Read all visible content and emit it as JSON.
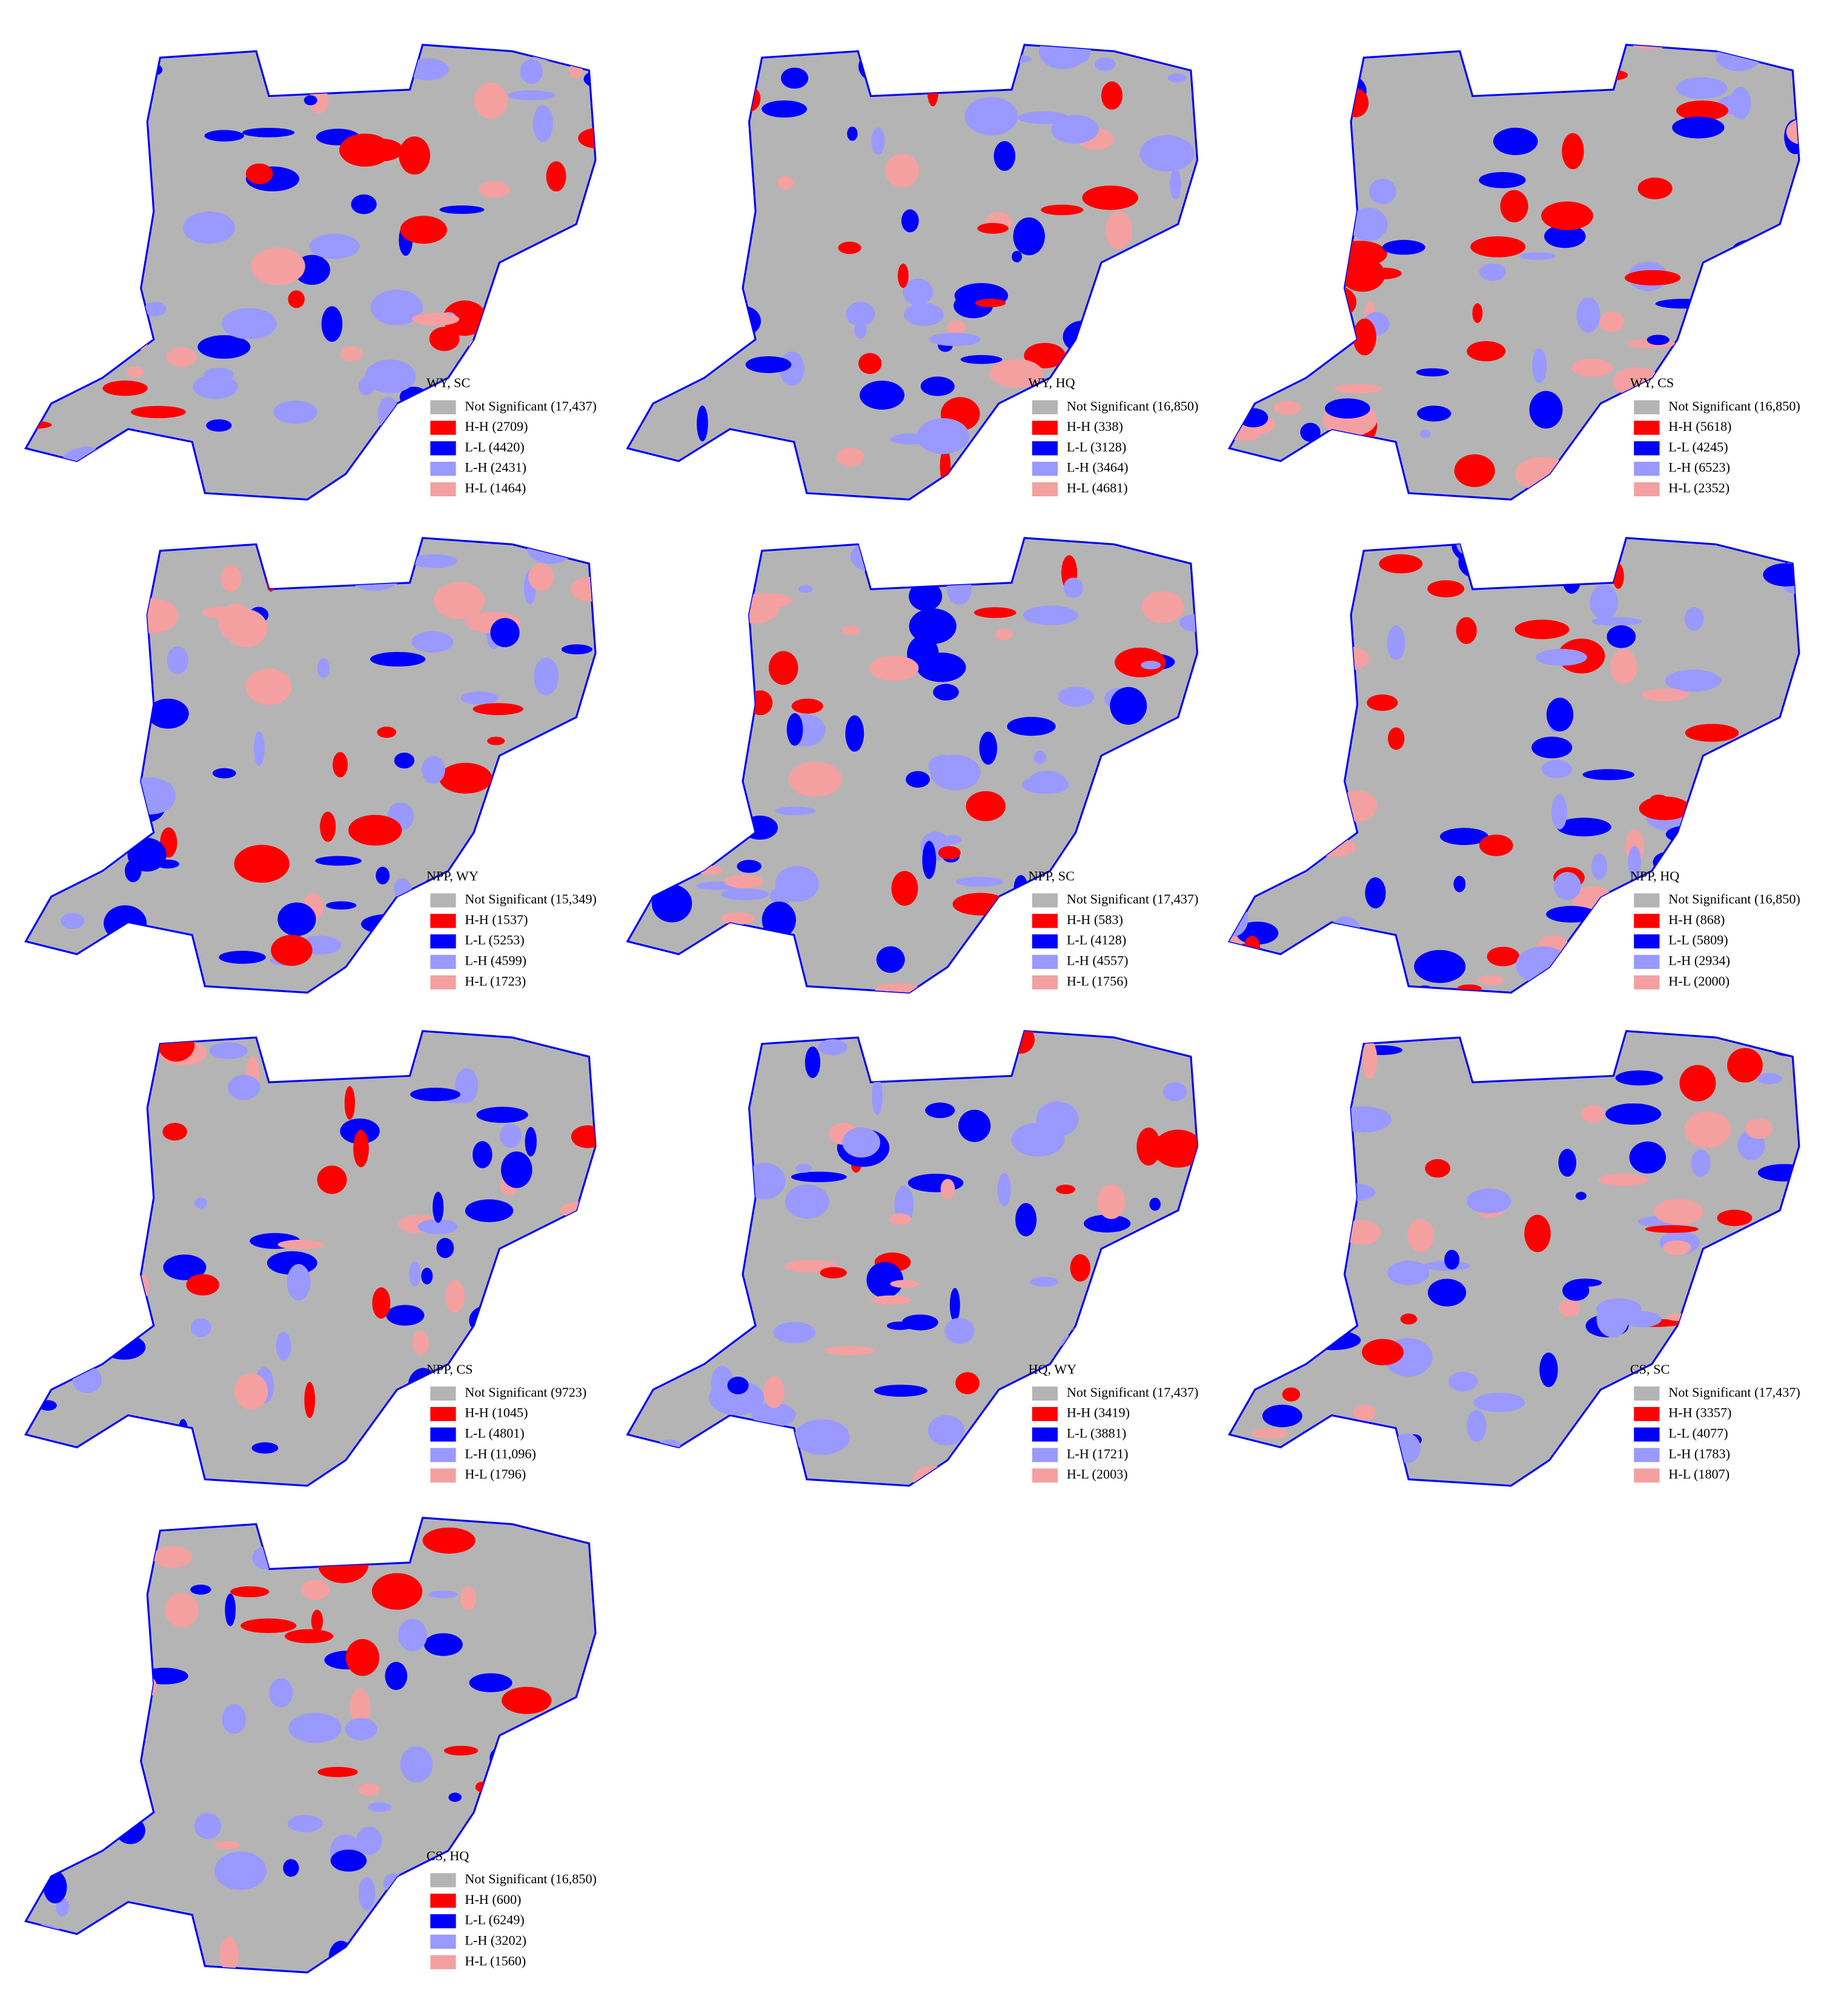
{
  "panels": [
    {
      "title": "WY, SC",
      "legend": [
        {
          "label": "Not Significant (17,437)",
          "color": "#b4b4b4"
        },
        {
          "label": "H-H (2709)",
          "color": "#ff0000"
        },
        {
          "label": "L-L (4420)",
          "color": "#0000ff"
        },
        {
          "label": "L-H (2431)",
          "color": "#9999ff"
        },
        {
          "label": "H-L (1464)",
          "color": "#f4a0a0"
        }
      ]
    },
    {
      "title": "WY, HQ",
      "legend": [
        {
          "label": "Not Significant (16,850)",
          "color": "#b4b4b4"
        },
        {
          "label": "H-H (338)",
          "color": "#ff0000"
        },
        {
          "label": "L-L (3128)",
          "color": "#0000ff"
        },
        {
          "label": "L-H (3464)",
          "color": "#9999ff"
        },
        {
          "label": "H-L (4681)",
          "color": "#f4a0a0"
        }
      ]
    },
    {
      "title": "WY, CS",
      "legend": [
        {
          "label": "Not Significant (16,850)",
          "color": "#b4b4b4"
        },
        {
          "label": "H-H (5618)",
          "color": "#ff0000"
        },
        {
          "label": "L-L (4245)",
          "color": "#0000ff"
        },
        {
          "label": "L-H (6523)",
          "color": "#9999ff"
        },
        {
          "label": "H-L (2352)",
          "color": "#f4a0a0"
        }
      ]
    },
    {
      "title": "NPP, WY",
      "legend": [
        {
          "label": "Not Significant (15,349)",
          "color": "#b4b4b4"
        },
        {
          "label": "H-H (1537)",
          "color": "#ff0000"
        },
        {
          "label": "L-L (5253)",
          "color": "#0000ff"
        },
        {
          "label": "L-H (4599)",
          "color": "#9999ff"
        },
        {
          "label": "H-L (1723)",
          "color": "#f4a0a0"
        }
      ]
    },
    {
      "title": "NPP, SC",
      "legend": [
        {
          "label": "Not Significant (17,437)",
          "color": "#b4b4b4"
        },
        {
          "label": "H-H (583)",
          "color": "#ff0000"
        },
        {
          "label": "L-L (4128)",
          "color": "#0000ff"
        },
        {
          "label": "L-H (4557)",
          "color": "#9999ff"
        },
        {
          "label": "H-L (1756)",
          "color": "#f4a0a0"
        }
      ]
    },
    {
      "title": "NPP, HQ",
      "legend": [
        {
          "label": "Not Significant (16,850)",
          "color": "#b4b4b4"
        },
        {
          "label": "H-H (868)",
          "color": "#ff0000"
        },
        {
          "label": "L-L (5809)",
          "color": "#0000ff"
        },
        {
          "label": "L-H (2934)",
          "color": "#9999ff"
        },
        {
          "label": "H-L (2000)",
          "color": "#f4a0a0"
        }
      ]
    },
    {
      "title": "NPP, CS",
      "legend": [
        {
          "label": "Not Significant (9723)",
          "color": "#b4b4b4"
        },
        {
          "label": "H-H (1045)",
          "color": "#ff0000"
        },
        {
          "label": "L-L (4801)",
          "color": "#0000ff"
        },
        {
          "label": "L-H (11,096)",
          "color": "#9999ff"
        },
        {
          "label": "H-L (1796)",
          "color": "#f4a0a0"
        }
      ]
    },
    {
      "title": "HQ, WY",
      "legend": [
        {
          "label": "Not Significant (17,437)",
          "color": "#b4b4b4"
        },
        {
          "label": "H-H (3419)",
          "color": "#ff0000"
        },
        {
          "label": "L-L (3881)",
          "color": "#0000ff"
        },
        {
          "label": "L-H (1721)",
          "color": "#9999ff"
        },
        {
          "label": "H-L (2003)",
          "color": "#f4a0a0"
        }
      ]
    },
    {
      "title": "CS, SC",
      "legend": [
        {
          "label": "Not Significant (17,437)",
          "color": "#b4b4b4"
        },
        {
          "label": "H-H (3357)",
          "color": "#ff0000"
        },
        {
          "label": "L-L (4077)",
          "color": "#0000ff"
        },
        {
          "label": "L-H (1783)",
          "color": "#9999ff"
        },
        {
          "label": "H-L (1807)",
          "color": "#f4a0a0"
        }
      ]
    },
    {
      "title": "CS, HQ",
      "legend": [
        {
          "label": "Not Significant (16,850)",
          "color": "#b4b4b4"
        },
        {
          "label": "H-H (600)",
          "color": "#ff0000"
        },
        {
          "label": "L-L (6249)",
          "color": "#0000ff"
        },
        {
          "label": "L-H (3202)",
          "color": "#9999ff"
        },
        {
          "label": "H-L (1560)",
          "color": "#f4a0a0"
        }
      ]
    }
  ]
}
